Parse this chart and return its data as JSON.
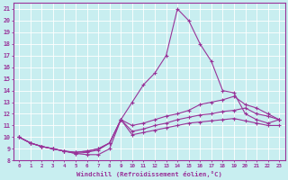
{
  "xlabel": "Windchill (Refroidissement éolien,°C)",
  "xlim": [
    -0.5,
    23.5
  ],
  "ylim": [
    8,
    21.5
  ],
  "yticks": [
    8,
    9,
    10,
    11,
    12,
    13,
    14,
    15,
    16,
    17,
    18,
    19,
    20,
    21
  ],
  "xticks": [
    0,
    1,
    2,
    3,
    4,
    5,
    6,
    7,
    8,
    9,
    10,
    11,
    12,
    13,
    14,
    15,
    16,
    17,
    18,
    19,
    20,
    21,
    22,
    23
  ],
  "background_color": "#c8eef0",
  "grid_color": "#b0dde0",
  "line_color": "#993399",
  "curves": [
    {
      "x": [
        0,
        1,
        2,
        3,
        4,
        5,
        6,
        7,
        8,
        9,
        10,
        11,
        12,
        13,
        14,
        15,
        16,
        17,
        18,
        19,
        20,
        21,
        22,
        23
      ],
      "y": [
        10,
        9.5,
        9.2,
        9.0,
        8.8,
        8.6,
        8.5,
        8.5,
        9.0,
        11.5,
        13.0,
        14.5,
        15.5,
        17.0,
        21.0,
        20.0,
        18.0,
        16.5,
        14.0,
        13.8,
        12.0,
        11.5,
        11.2,
        11.5
      ]
    },
    {
      "x": [
        0,
        1,
        2,
        3,
        4,
        5,
        6,
        7,
        8,
        9,
        10,
        11,
        12,
        13,
        14,
        15,
        16,
        17,
        18,
        19,
        20,
        21,
        22,
        23
      ],
      "y": [
        10,
        9.5,
        9.2,
        9.0,
        8.8,
        8.6,
        8.7,
        8.9,
        9.5,
        11.5,
        11.0,
        11.2,
        11.5,
        11.8,
        12.0,
        12.3,
        12.8,
        13.0,
        13.2,
        13.5,
        12.8,
        12.5,
        12.0,
        11.5
      ]
    },
    {
      "x": [
        0,
        1,
        2,
        3,
        4,
        5,
        6,
        7,
        8,
        9,
        10,
        11,
        12,
        13,
        14,
        15,
        16,
        17,
        18,
        19,
        20,
        21,
        22,
        23
      ],
      "y": [
        10,
        9.5,
        9.2,
        9.0,
        8.8,
        8.7,
        8.8,
        9.0,
        9.5,
        11.5,
        10.5,
        10.7,
        11.0,
        11.2,
        11.5,
        11.7,
        11.9,
        12.0,
        12.2,
        12.3,
        12.5,
        12.0,
        11.8,
        11.5
      ]
    },
    {
      "x": [
        0,
        1,
        2,
        3,
        4,
        5,
        6,
        7,
        8,
        9,
        10,
        11,
        12,
        13,
        14,
        15,
        16,
        17,
        18,
        19,
        20,
        21,
        22,
        23
      ],
      "y": [
        10,
        9.5,
        9.2,
        9.0,
        8.8,
        8.7,
        8.8,
        9.0,
        9.5,
        11.5,
        10.2,
        10.4,
        10.6,
        10.8,
        11.0,
        11.2,
        11.3,
        11.4,
        11.5,
        11.6,
        11.4,
        11.2,
        11.0,
        11.0
      ]
    }
  ]
}
